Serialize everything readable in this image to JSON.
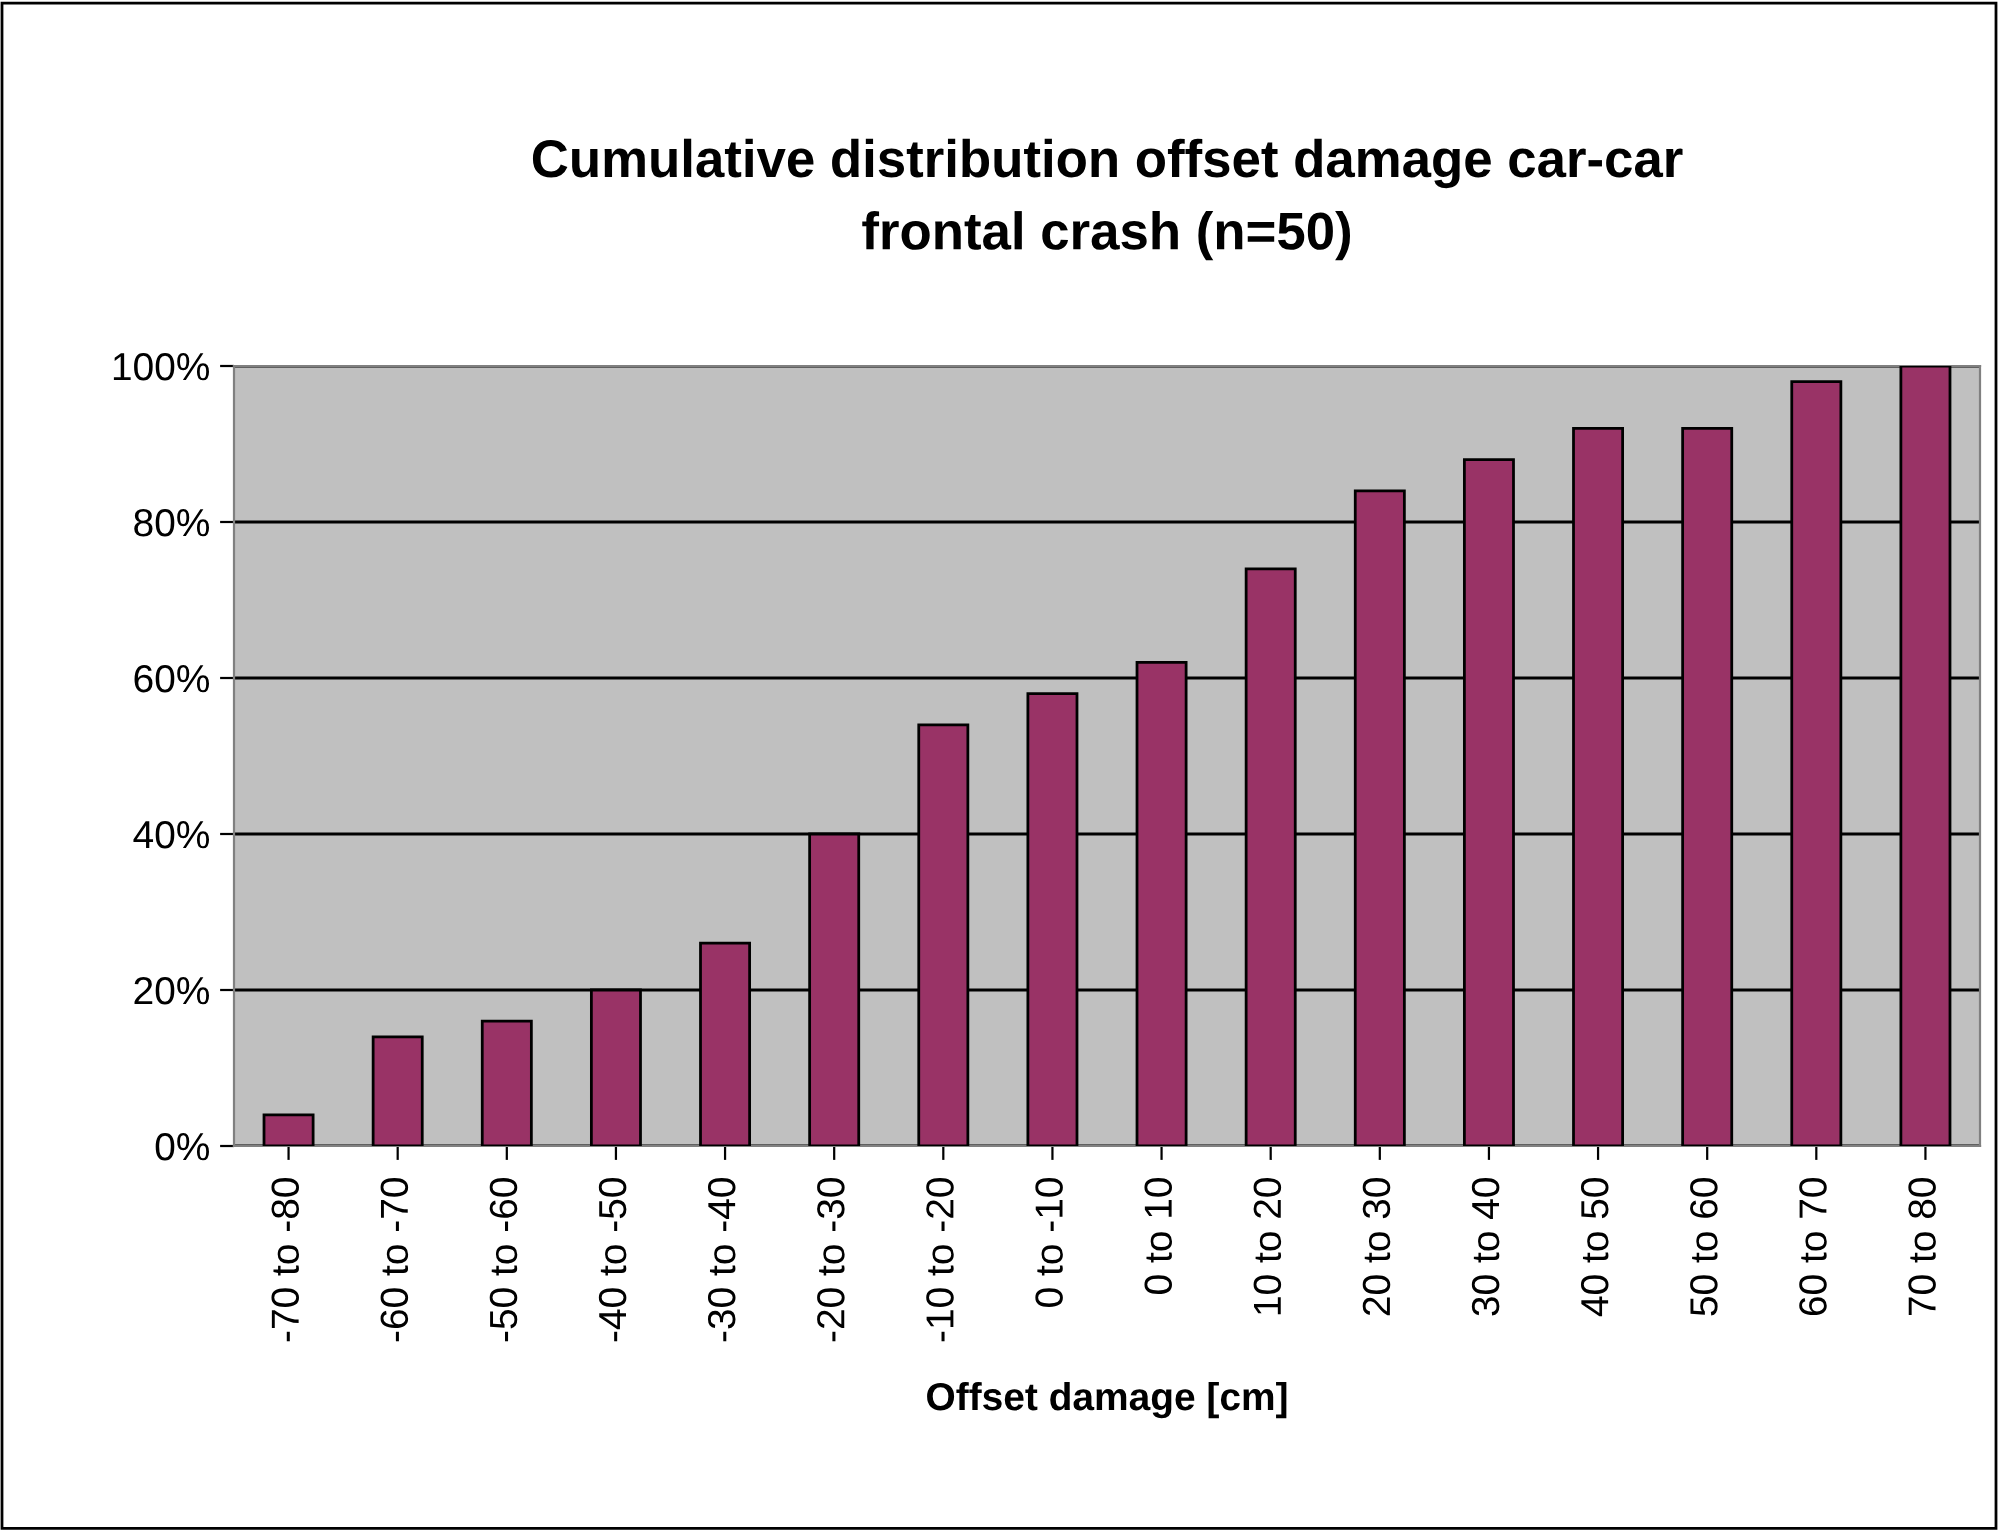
{
  "chart_data": {
    "type": "bar",
    "title": "Cumulative distribution offset damage car-car\nfrontal crash (n=50)",
    "xlabel": "Offset damage [cm]",
    "categories": [
      "-70 to -80",
      "-60 to -70",
      "-50 to -60",
      "-40 to -50",
      "-30 to -40",
      "-20 to -30",
      "-10 to -20",
      "0 to -10",
      "0 to 10",
      "10 to 20",
      "20 to 30",
      "30 to 40",
      "40 to 50",
      "50 to 60",
      "60 to 70",
      "70 to 80"
    ],
    "values": [
      4,
      14,
      16,
      20,
      26,
      40,
      54,
      58,
      62,
      74,
      84,
      88,
      92,
      92,
      98,
      100
    ],
    "color": "#993366",
    "ylim": [
      0,
      100
    ],
    "yticks": [
      {
        "value": 0,
        "label": "0%"
      },
      {
        "value": 20,
        "label": "20%"
      },
      {
        "value": 40,
        "label": "40%"
      },
      {
        "value": 60,
        "label": "60%"
      },
      {
        "value": 80,
        "label": "80%"
      },
      {
        "value": 100,
        "label": "100%"
      }
    ],
    "grid": "y",
    "legend": false
  }
}
